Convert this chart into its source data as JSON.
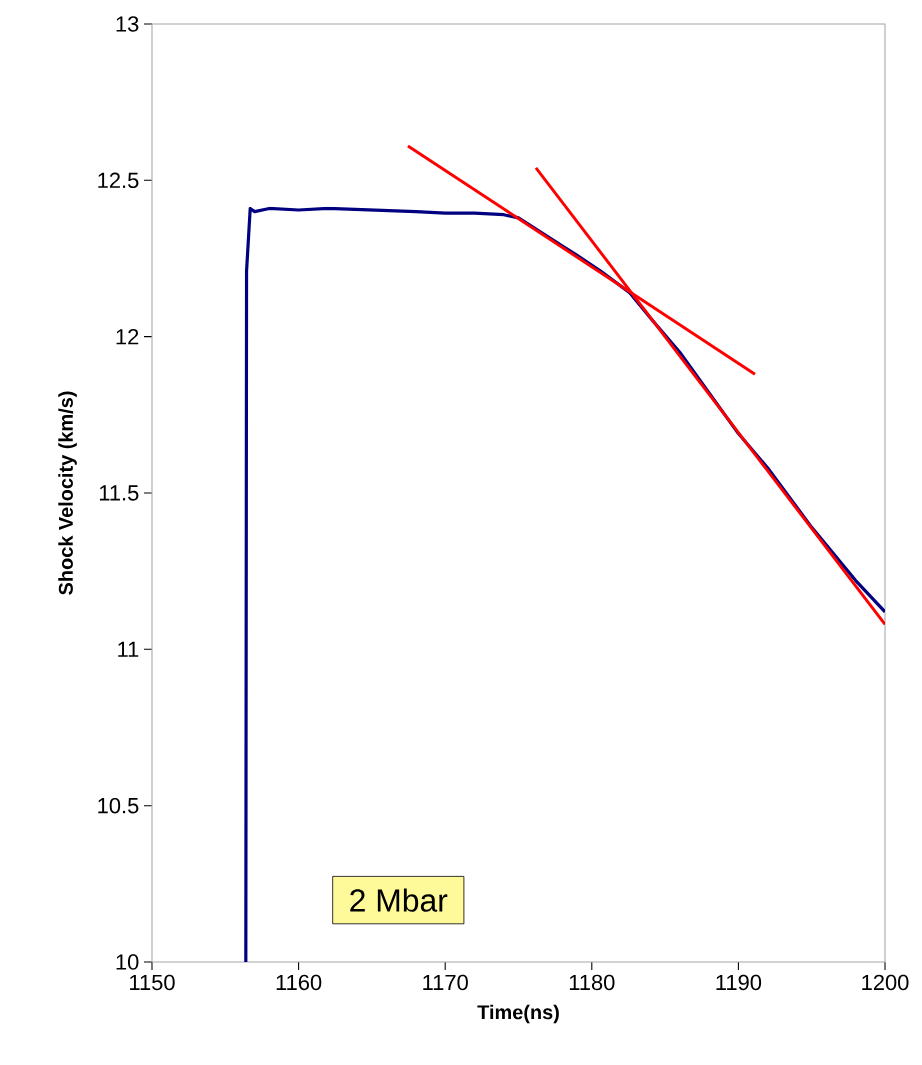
{
  "chart_data": {
    "type": "line",
    "xlabel": "Time(ns)",
    "ylabel": "Shock Velocity (km/s)",
    "xlim": [
      1150,
      1200
    ],
    "ylim": [
      10,
      13
    ],
    "xticks": [
      1150,
      1160,
      1170,
      1180,
      1190,
      1200
    ],
    "yticks": [
      10,
      10.5,
      11,
      11.5,
      12,
      12.5,
      13
    ],
    "grid": false,
    "annotations": [
      "2 Mbar"
    ],
    "series": [
      {
        "color": "#000080",
        "x": [
          1156.4,
          1156.45,
          1156.7,
          1157,
          1158,
          1160,
          1162,
          1165,
          1168,
          1170,
          1172,
          1174,
          1175,
          1176,
          1177,
          1178,
          1179,
          1180.6,
          1182.6,
          1184,
          1186,
          1188,
          1190,
          1192,
          1195,
          1198,
          1200
        ],
        "values": [
          10,
          12.21,
          12.41,
          12.4,
          12.41,
          12.405,
          12.41,
          12.405,
          12.4,
          12.395,
          12.395,
          12.39,
          12.38,
          12.35,
          12.32,
          12.29,
          12.26,
          12.21,
          12.14,
          12.06,
          11.95,
          11.82,
          11.69,
          11.58,
          11.39,
          11.22,
          11.12
        ]
      },
      {
        "color": "#ff0000",
        "x": [
          1167.46,
          1191.13
        ],
        "values": [
          12.61,
          11.88
        ]
      },
      {
        "color": "#ff0000",
        "x": [
          1176.19,
          1200
        ],
        "values": [
          12.54,
          11.08
        ]
      }
    ]
  }
}
